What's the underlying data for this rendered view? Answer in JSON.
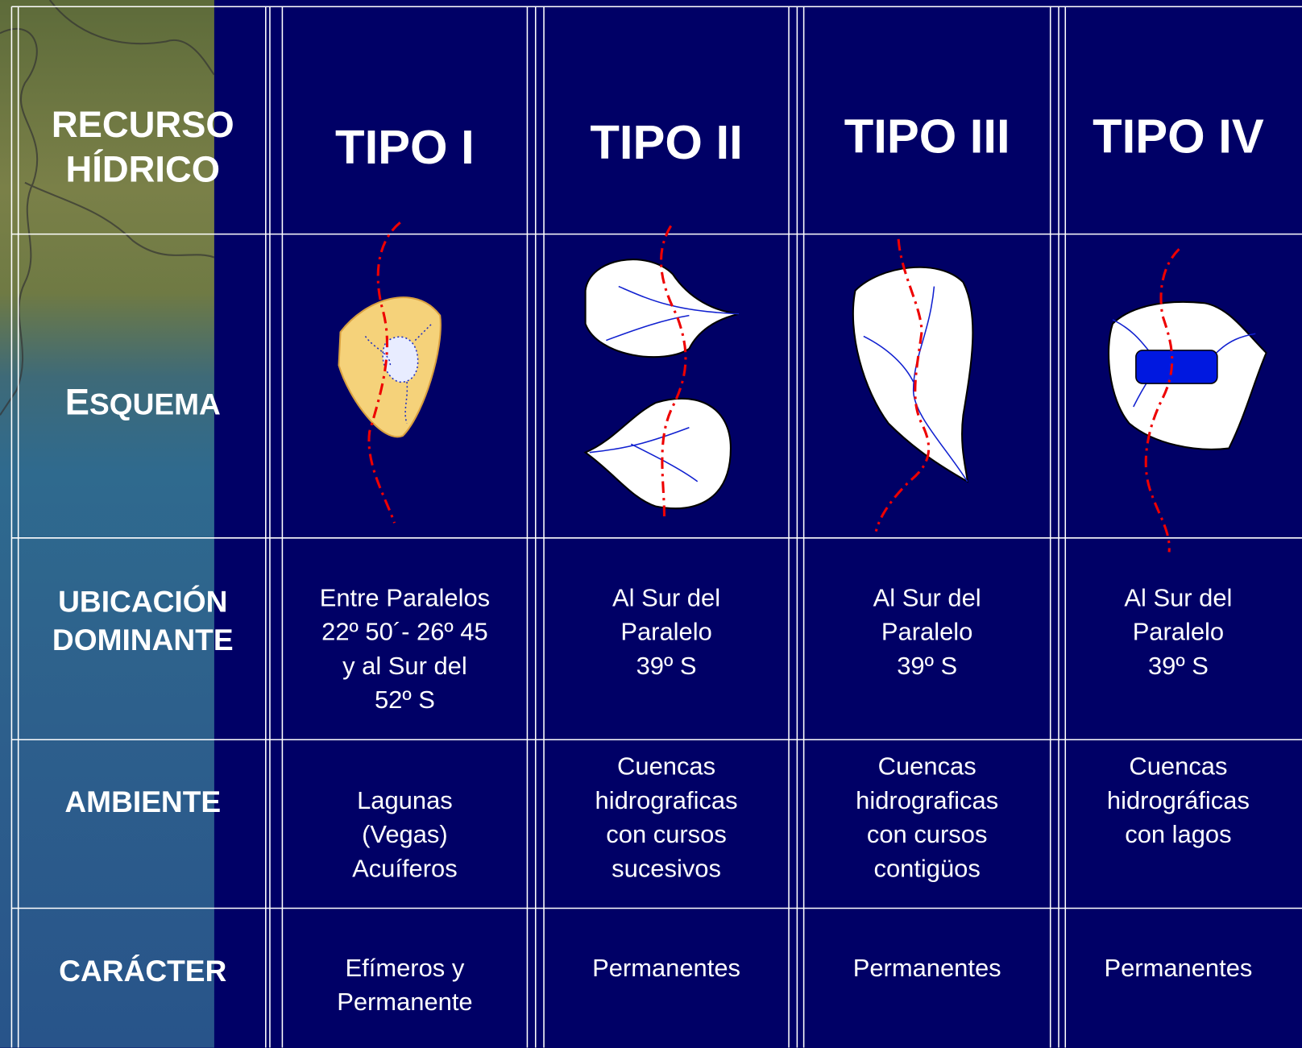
{
  "header": {
    "corner": "RECURSO\nHÍDRICO",
    "columns": [
      "TIPO I",
      "TIPO II",
      "TIPO III",
      "TIPO IV"
    ]
  },
  "row_labels": [
    "ESQUEMA",
    "UBICACIÓN\nDOMINANTE",
    "AMBIENTE",
    "CARÁCTER"
  ],
  "table": {
    "rows": [
      [
        "Entre Paralelos\n22º 50´- 26º 45\ny al Sur del\n52º S",
        "Al Sur del\nParalelo\n39º S",
        "Al Sur del\nParalelo\n39º S",
        "Al Sur del\nParalelo\n39º S"
      ],
      [
        "Lagunas\n(Vegas)\nAcuíferos",
        "Cuencas\nhidrograficas\ncon cursos\nsucesivos",
        "Cuencas\nhidrograficas\ncon cursos\ncontigüos",
        "Cuencas\nhidrográficas\ncon lagos"
      ],
      [
        "Efímeros y\nPermanente",
        "Permanentes",
        "Permanentes",
        "Permanentes"
      ]
    ]
  }
}
